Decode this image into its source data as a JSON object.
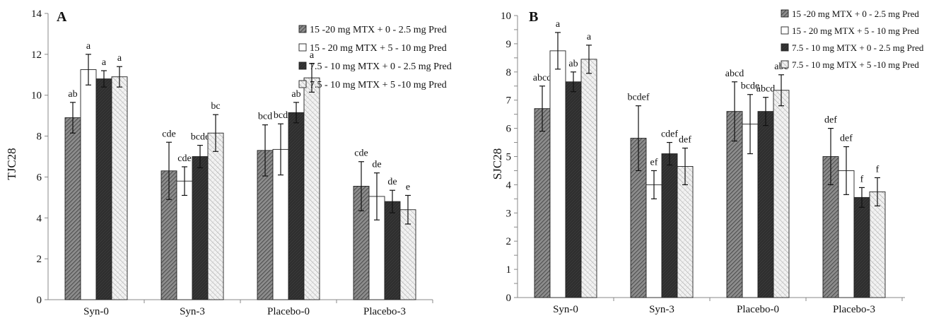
{
  "legend_colors": [
    "#808080",
    "#ffffff",
    "#333333",
    "#cccccc"
  ],
  "chart_data": [
    {
      "type": "bar",
      "panel_label": "A",
      "ylabel": "TJC28",
      "xlabel": "",
      "ylim": [
        0,
        14
      ],
      "ytick_values": [
        0,
        2,
        4,
        6,
        8,
        10,
        12,
        14
      ],
      "ytick_labels": [
        "0",
        "2",
        "4",
        "6",
        "8",
        "10",
        "12",
        "14"
      ],
      "legend_position": "top-right",
      "grid": false,
      "categories": [
        "Syn-0",
        "Syn-3",
        "Placebo-0",
        "Placebo-3"
      ],
      "series": [
        {
          "name": "15 -20 mg MTX + 0 - 2.5 mg Pred",
          "values": [
            8.9,
            6.3,
            7.3,
            5.55
          ],
          "errors": [
            0.75,
            1.4,
            1.25,
            1.2
          ],
          "labels": [
            "ab",
            "cde",
            "bcd",
            "cde"
          ]
        },
        {
          "name": "15 - 20 mg MTX + 5 - 10 mg Pred",
          "values": [
            11.25,
            5.8,
            7.35,
            5.05
          ],
          "errors": [
            0.75,
            0.7,
            1.25,
            1.15
          ],
          "labels": [
            "a",
            "cde",
            "bcd",
            "de"
          ]
        },
        {
          "name": "7.5 - 10 mg MTX + 0 - 2.5 mg Pred",
          "values": [
            10.8,
            7.0,
            9.15,
            4.8
          ],
          "errors": [
            0.4,
            0.55,
            0.5,
            0.55
          ],
          "labels": [
            "a",
            "bcde",
            "ab",
            "de"
          ]
        },
        {
          "name": "7.5 - 10 mg MTX + 5 -10 mg Pred",
          "values": [
            10.9,
            8.15,
            10.85,
            4.4
          ],
          "errors": [
            0.5,
            0.9,
            0.7,
            0.7
          ],
          "labels": [
            "a",
            "bc",
            "a",
            "e"
          ]
        }
      ]
    },
    {
      "type": "bar",
      "panel_label": "B",
      "ylabel": "SJC28",
      "xlabel": "",
      "ylim": [
        0,
        10
      ],
      "ytick_values": [
        0,
        0.5,
        1,
        1.5,
        2,
        2.5,
        3,
        3.5,
        4,
        4.5,
        5,
        5.5,
        6,
        6.5,
        7,
        7.5,
        8,
        8.5,
        9,
        9.5,
        10
      ],
      "ytick_labels": [
        "0",
        "",
        "1",
        "",
        "2",
        "",
        "3",
        "",
        "4",
        "",
        "5",
        "",
        "6",
        "",
        "7",
        "",
        "8",
        "",
        "9",
        "",
        "10"
      ],
      "legend_position": "top-right",
      "grid": false,
      "categories": [
        "Syn-0",
        "Syn-3",
        "Placebo-0",
        "Placebo-3"
      ],
      "series": [
        {
          "name": "15 -20 mg MTX + 0 - 2.5 mg Pred",
          "values": [
            6.7,
            5.65,
            6.6,
            5.0
          ],
          "errors": [
            0.8,
            1.15,
            1.05,
            1.0
          ],
          "labels": [
            "abcd",
            "bcdef",
            "abcd",
            "def"
          ]
        },
        {
          "name": "15 - 20 mg MTX + 5 - 10 mg Pred",
          "values": [
            8.75,
            4.0,
            6.15,
            4.5
          ],
          "errors": [
            0.65,
            0.5,
            1.05,
            0.85
          ],
          "labels": [
            "a",
            "ef",
            "bcde",
            "def"
          ]
        },
        {
          "name": "7.5 - 10 mg MTX + 0 - 2.5 mg Pred",
          "values": [
            7.65,
            5.1,
            6.6,
            3.55
          ],
          "errors": [
            0.35,
            0.4,
            0.5,
            0.35
          ],
          "labels": [
            "ab",
            "cdef",
            "abcd",
            "f"
          ]
        },
        {
          "name": "7.5 - 10 mg MTX + 5 -10 mg Pred",
          "values": [
            8.45,
            4.65,
            7.35,
            3.75
          ],
          "errors": [
            0.5,
            0.65,
            0.55,
            0.5
          ],
          "labels": [
            "a",
            "def",
            "abc",
            "f"
          ]
        }
      ]
    }
  ]
}
